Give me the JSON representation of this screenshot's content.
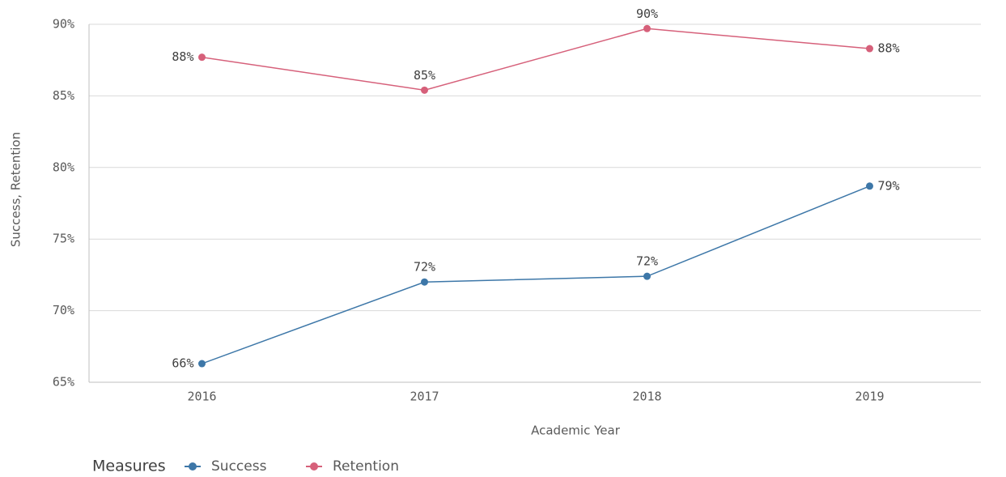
{
  "chart_data": {
    "type": "line",
    "x_label": "Academic Year",
    "y_label": "Success, Retention",
    "legend_title": "Measures",
    "categories": [
      "2016",
      "2017",
      "2018",
      "2019"
    ],
    "series": [
      {
        "name": "Success",
        "color": "#3d77a8",
        "values": [
          66.3,
          72.0,
          72.4,
          78.7
        ],
        "value_labels": [
          "66%",
          "72%",
          "72%",
          "79%"
        ]
      },
      {
        "name": "Retention",
        "color": "#d6607a",
        "values": [
          87.7,
          85.4,
          89.7,
          88.3
        ],
        "value_labels": [
          "88%",
          "85%",
          "90%",
          "88%"
        ]
      }
    ],
    "ylim": [
      65,
      90
    ],
    "yticks": [
      {
        "value": 65,
        "label": "65%"
      },
      {
        "value": 70,
        "label": "70%"
      },
      {
        "value": 75,
        "label": "75%"
      },
      {
        "value": 80,
        "label": "80%"
      },
      {
        "value": 85,
        "label": "85%"
      },
      {
        "value": 90,
        "label": "90%"
      }
    ],
    "grid": true,
    "legend_position": "bottom-left"
  }
}
